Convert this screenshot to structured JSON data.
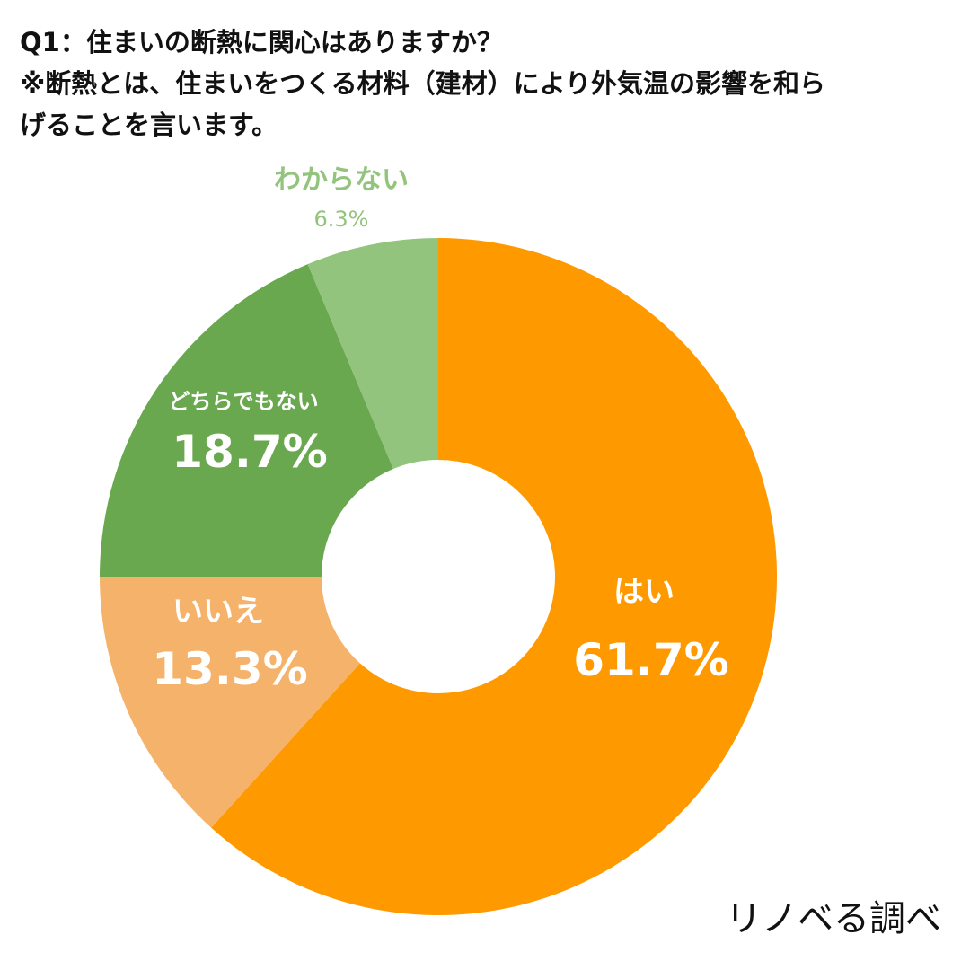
{
  "header": {
    "question_line1": "Q1：住まいの断熱に関心はありますか？",
    "question_line2": "※断熱とは、住まいをつくる材料（建材）により外気温の影響を和ら",
    "question_line3": "げることを言います。"
  },
  "footer": {
    "credit": "リノベる調べ"
  },
  "colors": {
    "yes": "#FF9900",
    "no": "#F4B26B",
    "neither": "#6AA84F",
    "unknown": "#93C47D",
    "center": "#FFFFFF"
  },
  "chart_data": {
    "type": "pie",
    "style": "donut",
    "title": "Q1：住まいの断熱に関心はありますか？",
    "start_angle_deg": 0,
    "direction": "clockwise",
    "categories": [
      "はい",
      "いいえ",
      "どちらでもない",
      "わからない"
    ],
    "values": [
      61.7,
      13.3,
      18.7,
      6.3
    ],
    "value_labels": [
      "61.7%",
      "13.3%",
      "18.7%",
      "6.3%"
    ],
    "unit": "%"
  }
}
